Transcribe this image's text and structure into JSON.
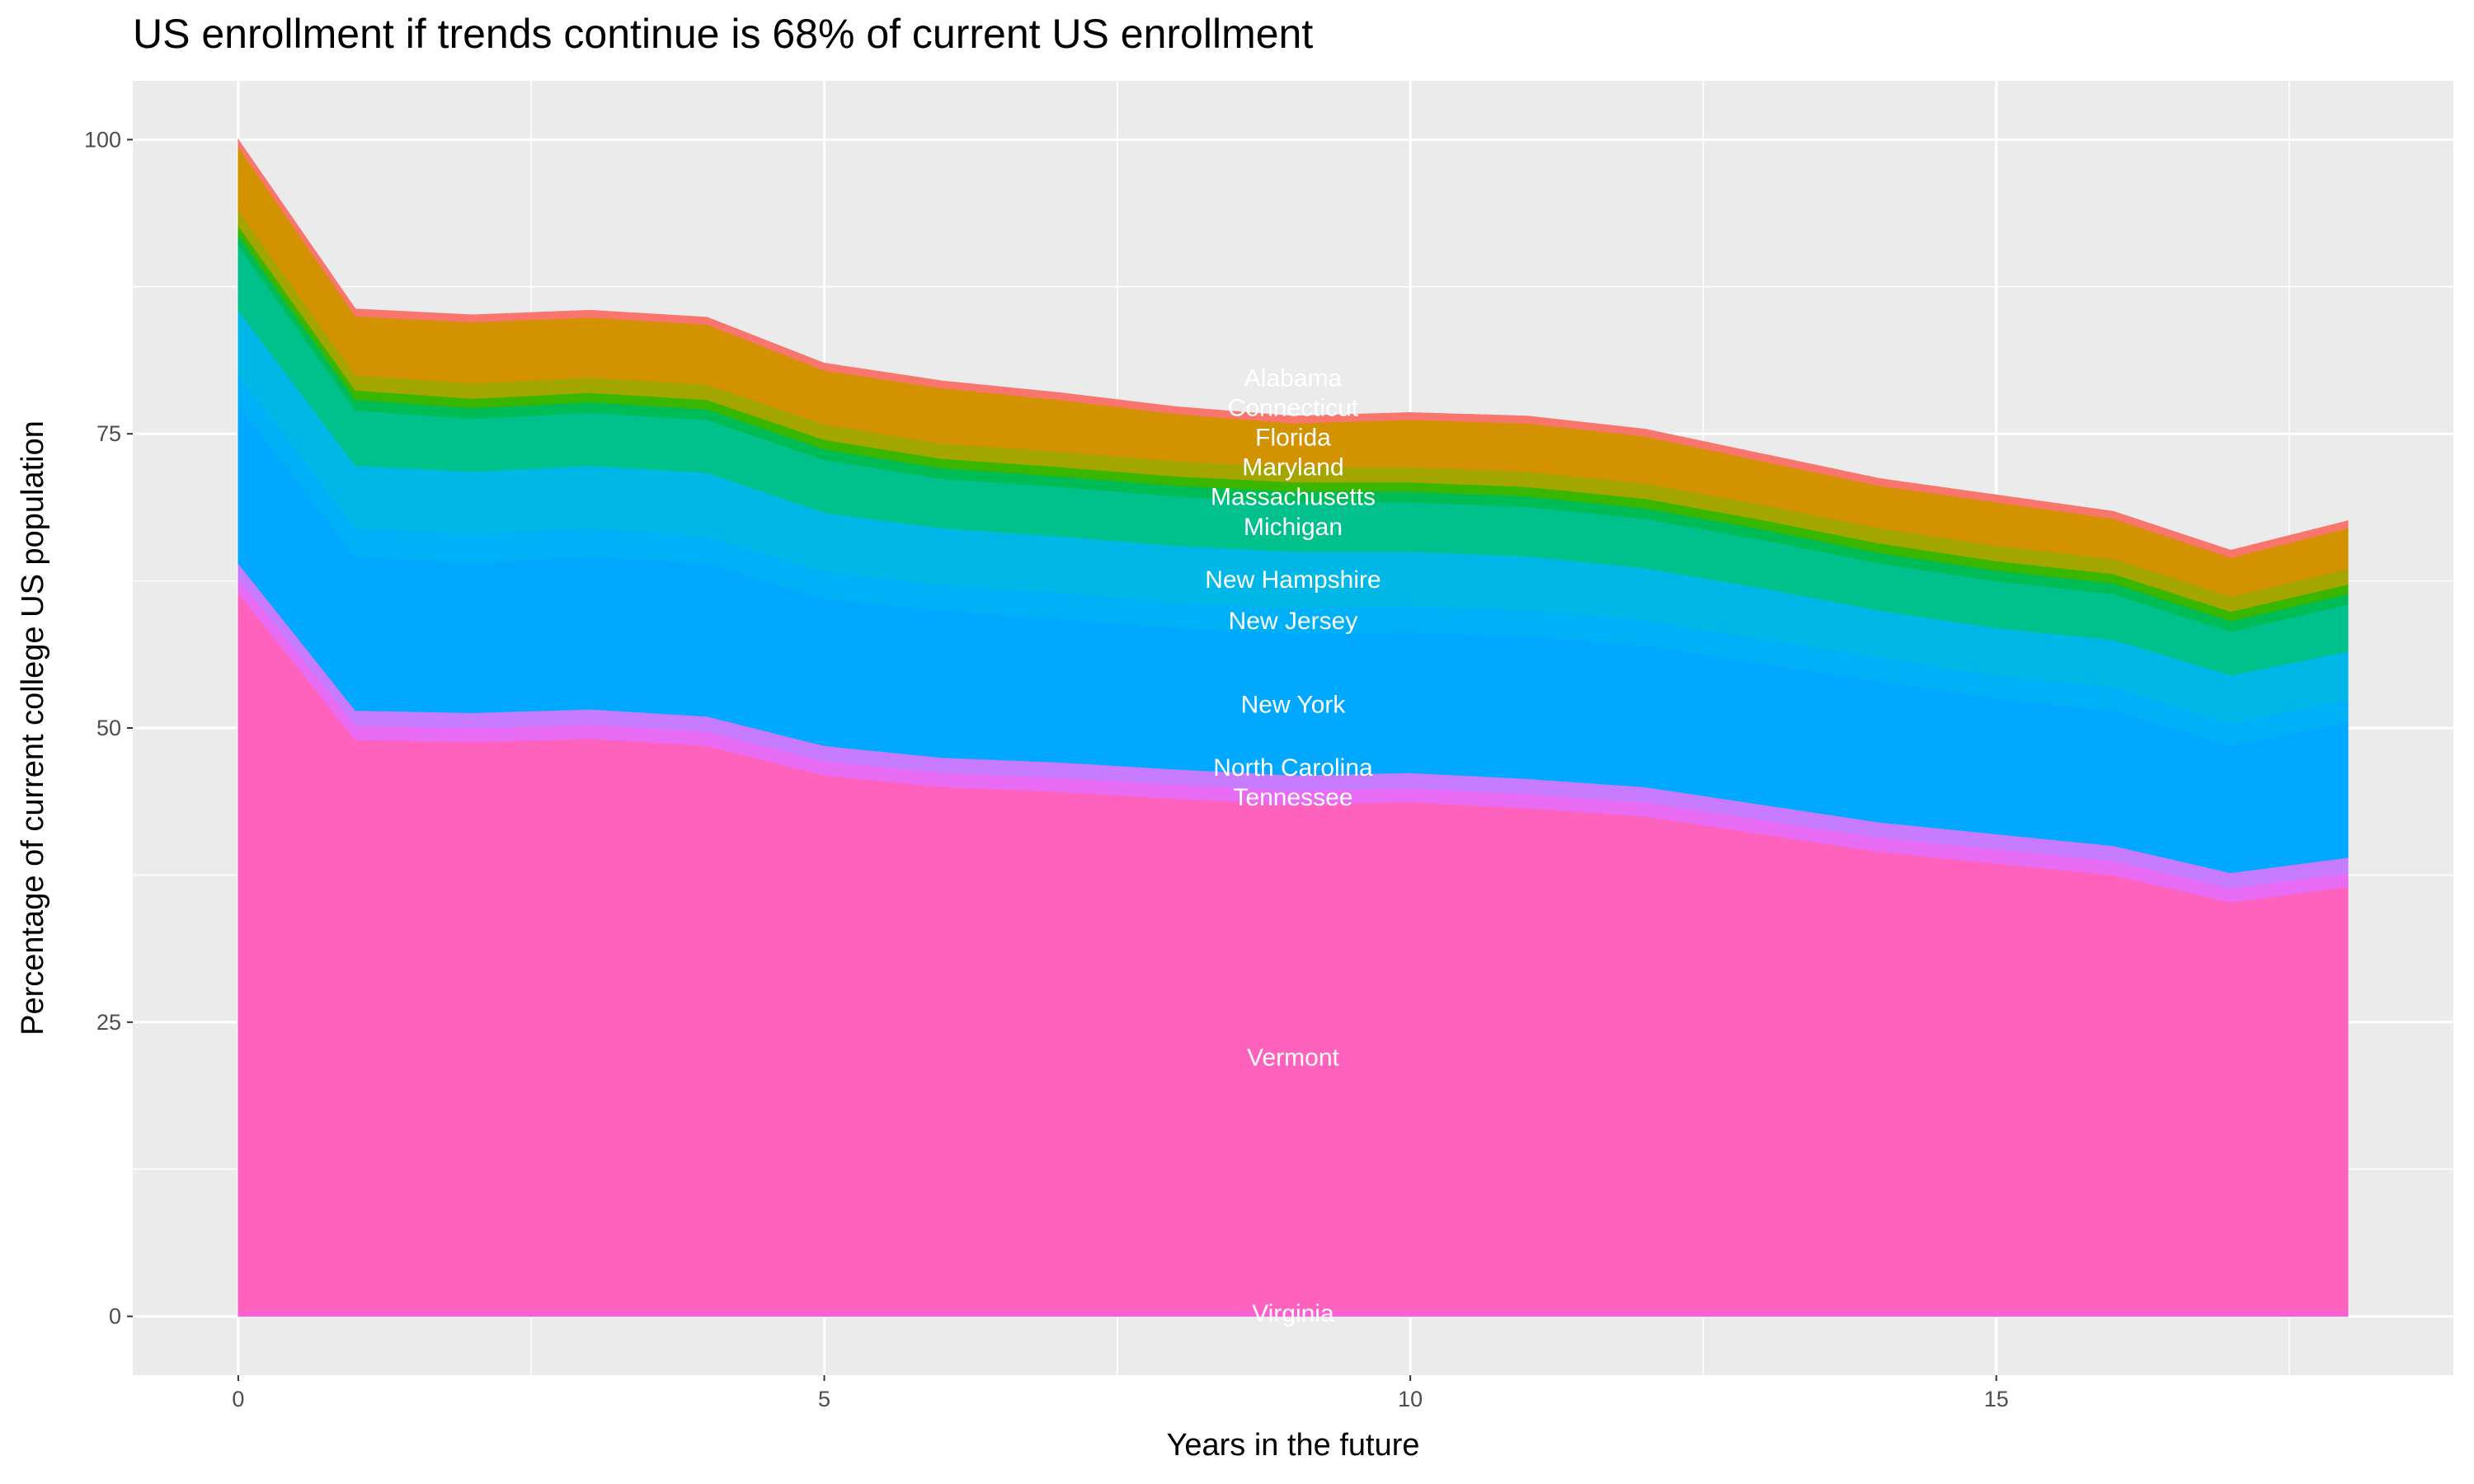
{
  "chart_data": {
    "type": "area",
    "stacked": true,
    "title": "US enrollment if trends continue is 68% of current US enrollment",
    "xlabel": "Years in the future",
    "ylabel": "Percentage of current college US population",
    "xlim": [
      -0.9,
      18.9
    ],
    "ylim": [
      -5,
      105
    ],
    "x_ticks": [
      0,
      5,
      10,
      15
    ],
    "y_ticks": [
      0,
      25,
      50,
      75,
      100
    ],
    "grid": true,
    "legend": "none",
    "background": "#EBEBEB",
    "x": [
      0,
      1,
      2,
      3,
      4,
      5,
      6,
      7,
      8,
      9,
      10,
      11,
      12,
      13,
      14,
      15,
      16,
      17,
      18
    ],
    "series": [
      {
        "name": "Virginia",
        "color": "#FB61D7",
        "values": [
          0.5,
          0.5,
          0.5,
          0.5,
          0.5,
          0.5,
          0.5,
          0.5,
          0.5,
          0.5,
          0.5,
          0.5,
          0.5,
          0.5,
          0.5,
          0.5,
          0.5,
          0.5,
          0.5
        ]
      },
      {
        "name": "Vermont",
        "color": "#FF62BC",
        "values": [
          61,
          48.5,
          48.3,
          48.6,
          48,
          45.5,
          44.5,
          44.1,
          43.5,
          43,
          43.2,
          42.7,
          42,
          40.5,
          39,
          38,
          37,
          34.7,
          36
        ]
      },
      {
        "name": "Tennessee",
        "color": "#E76BF3",
        "values": [
          1.2,
          1.2,
          1.2,
          1.2,
          1.2,
          1.2,
          1.2,
          1.2,
          1.2,
          1.2,
          1.2,
          1.2,
          1.2,
          1.2,
          1.2,
          1.2,
          1.2,
          1.2,
          1.2
        ]
      },
      {
        "name": "North Carolina",
        "color": "#C77CFF",
        "values": [
          1.3,
          1.3,
          1.3,
          1.3,
          1.3,
          1.3,
          1.3,
          1.3,
          1.3,
          1.3,
          1.3,
          1.3,
          1.3,
          1.3,
          1.3,
          1.3,
          1.3,
          1.3,
          1.3
        ]
      },
      {
        "name": "New York",
        "color": "#00A9FF",
        "values": [
          13.5,
          13,
          12.7,
          12.9,
          13,
          12.5,
          12.5,
          12.2,
          12,
          12,
          12,
          12.1,
          12,
          12,
          12,
          11.5,
          11.5,
          10.8,
          11.5
        ]
      },
      {
        "name": "New Jersey",
        "color": "#00B0F6",
        "values": [
          2.5,
          2.5,
          2.5,
          2.5,
          2.3,
          2.3,
          2.2,
          2.2,
          2.2,
          2.2,
          2.2,
          2.2,
          2.2,
          2.1,
          2,
          2,
          2,
          1.9,
          1.9
        ]
      },
      {
        "name": "New Hampshire",
        "color": "#00B8E7",
        "values": [
          5.5,
          5.3,
          5.3,
          5.3,
          5.4,
          5,
          4.8,
          4.8,
          4.8,
          4.8,
          4.6,
          4.6,
          4.4,
          4.3,
          4,
          4,
          4,
          4.1,
          4.1
        ]
      },
      {
        "name": "Michigan",
        "color": "#00C08B",
        "values": [
          5.5,
          4.7,
          4.5,
          4.5,
          4.5,
          4.5,
          4.2,
          4.2,
          4.2,
          4.2,
          4.2,
          4.2,
          4.2,
          4.1,
          4,
          4,
          3.9,
          3.7,
          4
        ]
      },
      {
        "name": "Massachusetts",
        "color": "#00BC56",
        "values": [
          0.9,
          0.9,
          0.9,
          0.9,
          0.9,
          0.9,
          0.9,
          0.9,
          0.9,
          0.9,
          0.9,
          0.9,
          0.9,
          0.9,
          0.9,
          0.9,
          0.9,
          0.9,
          0.9
        ]
      },
      {
        "name": "Maryland",
        "color": "#39B600",
        "values": [
          0.8,
          0.8,
          0.8,
          0.8,
          0.8,
          0.8,
          0.8,
          0.8,
          0.8,
          0.8,
          0.8,
          0.8,
          0.8,
          0.8,
          0.8,
          0.8,
          0.8,
          0.8,
          0.8
        ]
      },
      {
        "name": "Florida",
        "color": "#A3A500",
        "values": [
          1.3,
          1.3,
          1.3,
          1.3,
          1.3,
          1.3,
          1.3,
          1.3,
          1.3,
          1.3,
          1.3,
          1.3,
          1.3,
          1.3,
          1.3,
          1.3,
          1.3,
          1.3,
          1.3
        ]
      },
      {
        "name": "Connecticut",
        "color": "#D39200",
        "values": [
          5.4,
          5.0,
          5.2,
          5.1,
          5.1,
          4.6,
          4.7,
          4.4,
          4.0,
          3.7,
          4.0,
          4.1,
          4.0,
          3.7,
          3.6,
          3.7,
          3.4,
          3.3,
          3.5
        ]
      },
      {
        "name": "Alabama",
        "color": "#F8766D",
        "values": [
          0.6,
          0.6,
          0.6,
          0.6,
          0.6,
          0.6,
          0.6,
          0.6,
          0.6,
          0.6,
          0.6,
          0.6,
          0.6,
          0.6,
          0.6,
          0.6,
          0.6,
          0.6,
          0.6
        ]
      }
    ]
  }
}
